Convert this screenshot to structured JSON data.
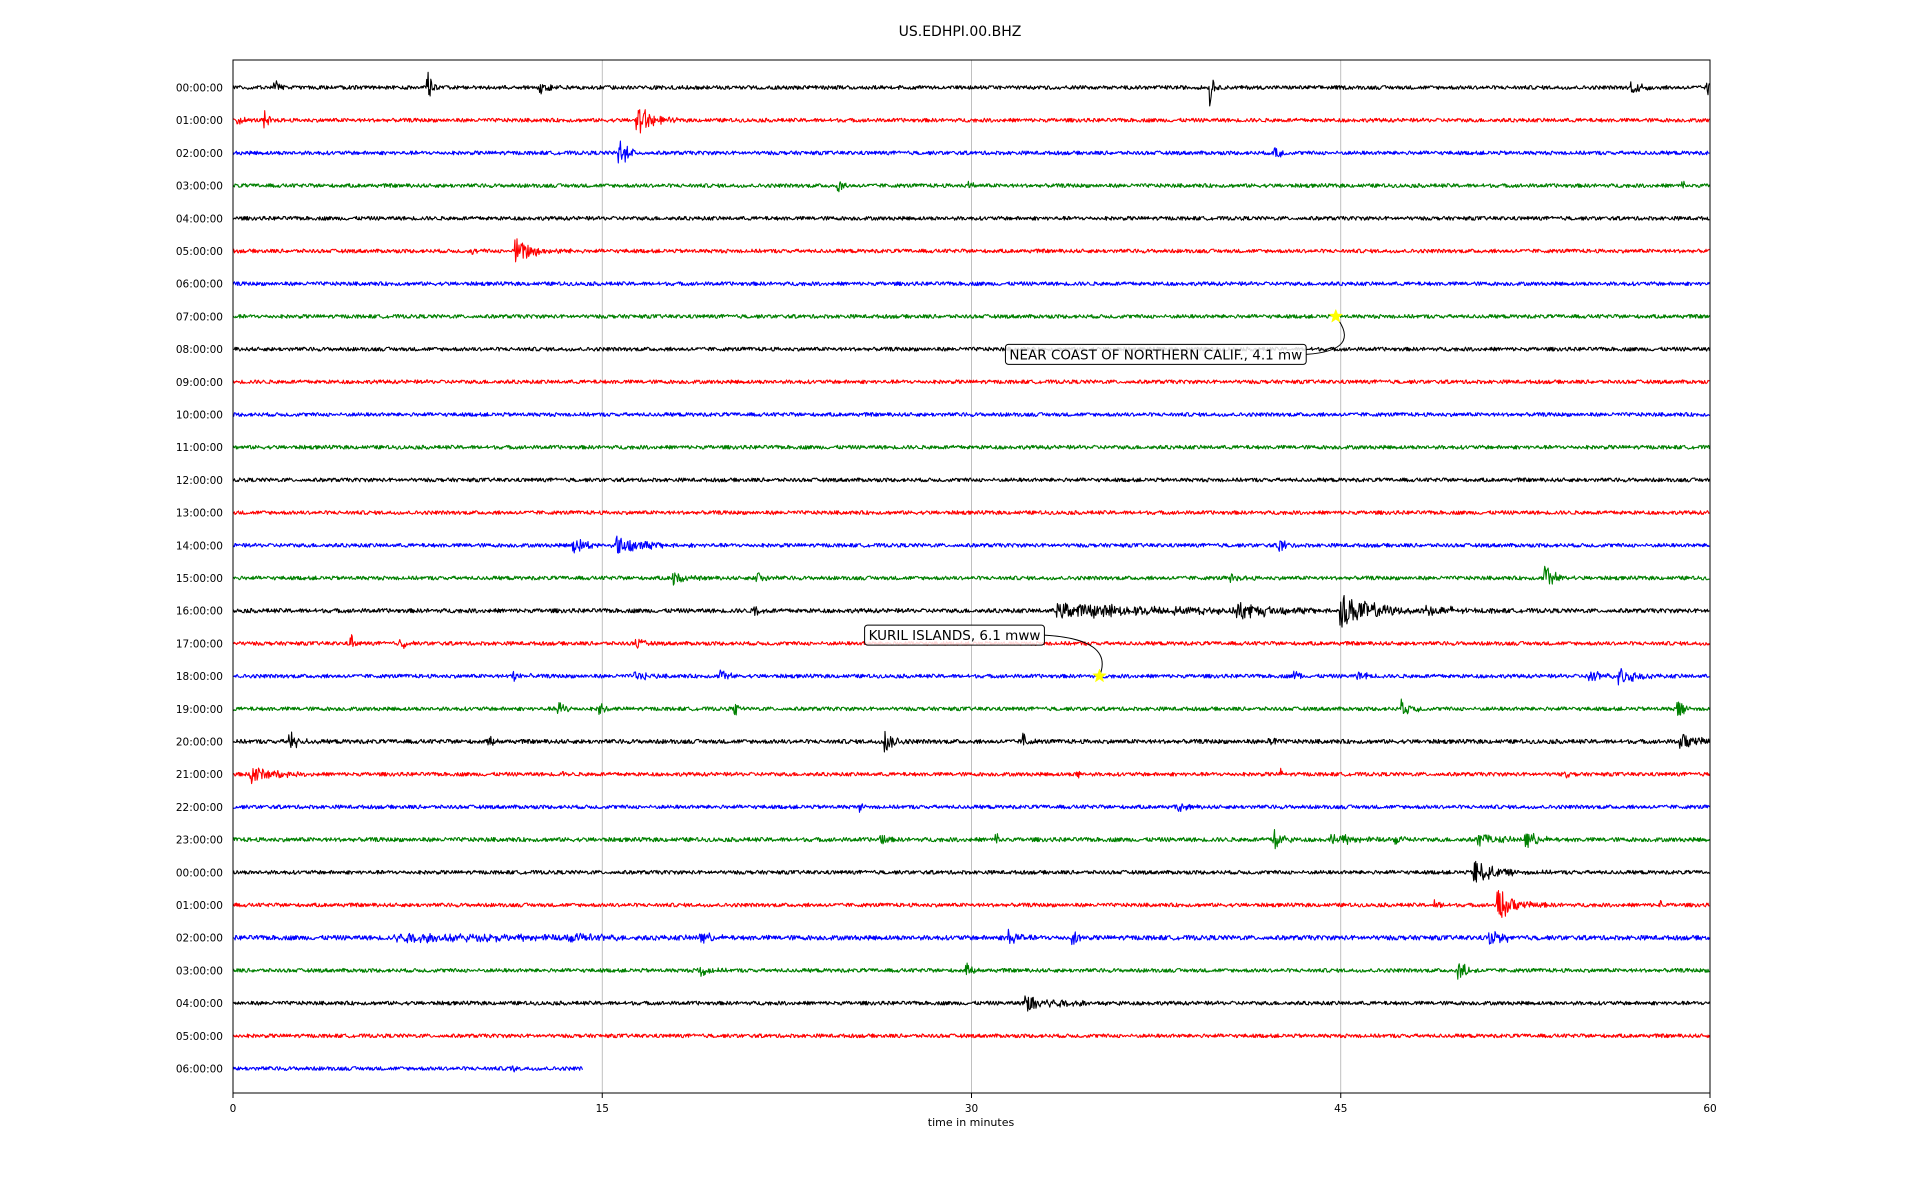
{
  "chart_data": {
    "type": "line",
    "title": "US.EDHPI.00.BHZ",
    "xlabel": "time in minutes",
    "ylabel": "",
    "xlim": [
      0,
      60
    ],
    "x_ticks": [
      0,
      15,
      30,
      45,
      60
    ],
    "grid": "vertical lines at 15, 30, 45",
    "trace_colors": [
      "#000000",
      "#ff0000",
      "#0000ff",
      "#008000"
    ],
    "row_labels": [
      "00:00:00",
      "01:00:00",
      "02:00:00",
      "03:00:00",
      "04:00:00",
      "05:00:00",
      "06:00:00",
      "07:00:00",
      "08:00:00",
      "09:00:00",
      "10:00:00",
      "11:00:00",
      "12:00:00",
      "13:00:00",
      "14:00:00",
      "15:00:00",
      "16:00:00",
      "17:00:00",
      "18:00:00",
      "19:00:00",
      "20:00:00",
      "21:00:00",
      "22:00:00",
      "23:00:00",
      "00:00:00",
      "01:00:00",
      "02:00:00",
      "03:00:00",
      "04:00:00",
      "05:00:00",
      "06:00:00"
    ],
    "rows": [
      {
        "end_minute": 60,
        "noise": 0.45,
        "events": [
          {
            "t": 1.7,
            "amp": 1.8,
            "dur": 0.4
          },
          {
            "t": 7.9,
            "amp": 4.5,
            "dur": 0.25
          },
          {
            "t": 12.5,
            "amp": 1.5,
            "dur": 0.6
          },
          {
            "t": 39.7,
            "amp": 5,
            "dur": 0.15
          },
          {
            "t": 56.8,
            "amp": 2.2,
            "dur": 0.7
          },
          {
            "t": 59.9,
            "amp": 2.5,
            "dur": 0.2
          }
        ]
      },
      {
        "end_minute": 60,
        "noise": 0.45,
        "events": [
          {
            "t": 0.2,
            "amp": 1.5,
            "dur": 0.3
          },
          {
            "t": 1.3,
            "amp": 2,
            "dur": 0.3
          },
          {
            "t": 16.4,
            "amp": 4.5,
            "dur": 0.9
          }
        ]
      },
      {
        "end_minute": 60,
        "noise": 0.45,
        "events": [
          {
            "t": 15.7,
            "amp": 4,
            "dur": 0.5
          },
          {
            "t": 42.3,
            "amp": 2,
            "dur": 0.4
          }
        ]
      },
      {
        "end_minute": 60,
        "noise": 0.45,
        "events": [
          {
            "t": 24.6,
            "amp": 2,
            "dur": 0.25
          },
          {
            "t": 29.9,
            "amp": 1.2,
            "dur": 0.3
          },
          {
            "t": 58.9,
            "amp": 1,
            "dur": 0.3
          }
        ]
      },
      {
        "end_minute": 60,
        "noise": 0.45,
        "events": []
      },
      {
        "end_minute": 60,
        "noise": 0.45,
        "events": [
          {
            "t": 9.7,
            "amp": 1.2,
            "dur": 0.3
          },
          {
            "t": 11.5,
            "amp": 3,
            "dur": 1.4
          }
        ]
      },
      {
        "end_minute": 60,
        "noise": 0.45,
        "events": []
      },
      {
        "end_minute": 60,
        "noise": 0.45,
        "events": []
      },
      {
        "end_minute": 60,
        "noise": 0.45,
        "events": []
      },
      {
        "end_minute": 60,
        "noise": 0.45,
        "events": []
      },
      {
        "end_minute": 60,
        "noise": 0.45,
        "events": []
      },
      {
        "end_minute": 60,
        "noise": 0.45,
        "events": []
      },
      {
        "end_minute": 60,
        "noise": 0.45,
        "events": []
      },
      {
        "end_minute": 60,
        "noise": 0.45,
        "events": []
      },
      {
        "end_minute": 60,
        "noise": 0.45,
        "events": [
          {
            "t": 13.8,
            "amp": 2,
            "dur": 1
          },
          {
            "t": 15.6,
            "amp": 2.5,
            "dur": 1.8
          },
          {
            "t": 42.5,
            "amp": 2,
            "dur": 0.4
          }
        ]
      },
      {
        "end_minute": 60,
        "noise": 0.45,
        "events": [
          {
            "t": 17.9,
            "amp": 1.8,
            "dur": 0.8
          },
          {
            "t": 21.3,
            "amp": 1.8,
            "dur": 0.6
          },
          {
            "t": 40.5,
            "amp": 1,
            "dur": 0.8
          },
          {
            "t": 53.3,
            "amp": 3,
            "dur": 0.8
          }
        ]
      },
      {
        "end_minute": 60,
        "noise": 0.5,
        "events": [
          {
            "t": 21.2,
            "amp": 1.5,
            "dur": 0.4
          },
          {
            "t": 33.5,
            "amp": 2,
            "dur": 8
          },
          {
            "t": 40.8,
            "amp": 2.2,
            "dur": 3
          },
          {
            "t": 45,
            "amp": 4,
            "dur": 2.5
          },
          {
            "t": 48.5,
            "amp": 1.6,
            "dur": 2
          }
        ]
      },
      {
        "end_minute": 60,
        "noise": 0.45,
        "events": [
          {
            "t": 4.8,
            "amp": 2,
            "dur": 0.2
          },
          {
            "t": 6.8,
            "amp": 1.5,
            "dur": 0.4
          },
          {
            "t": 16.4,
            "amp": 1.5,
            "dur": 0.4
          }
        ]
      },
      {
        "end_minute": 60,
        "noise": 0.45,
        "events": [
          {
            "t": 11.4,
            "amp": 2,
            "dur": 0.5
          },
          {
            "t": 16.3,
            "amp": 1.5,
            "dur": 0.8
          },
          {
            "t": 19.8,
            "amp": 1.5,
            "dur": 0.6
          },
          {
            "t": 43.1,
            "amp": 2,
            "dur": 0.3
          },
          {
            "t": 45.7,
            "amp": 1.3,
            "dur": 0.8
          },
          {
            "t": 55.1,
            "amp": 1.6,
            "dur": 0.8
          },
          {
            "t": 56.3,
            "amp": 2.2,
            "dur": 1.2
          }
        ]
      },
      {
        "end_minute": 60,
        "noise": 0.45,
        "events": [
          {
            "t": 13.2,
            "amp": 1.8,
            "dur": 0.5
          },
          {
            "t": 14.9,
            "amp": 2,
            "dur": 0.5
          },
          {
            "t": 20.4,
            "amp": 1.5,
            "dur": 0.4
          },
          {
            "t": 47.5,
            "amp": 2,
            "dur": 0.7
          },
          {
            "t": 58.7,
            "amp": 2,
            "dur": 0.5
          }
        ]
      },
      {
        "end_minute": 60,
        "noise": 0.5,
        "events": [
          {
            "t": 2.3,
            "amp": 2.5,
            "dur": 0.6
          },
          {
            "t": 10.4,
            "amp": 1.5,
            "dur": 0.3
          },
          {
            "t": 26.5,
            "amp": 3,
            "dur": 0.5
          },
          {
            "t": 32.1,
            "amp": 2.5,
            "dur": 0.3
          },
          {
            "t": 42.1,
            "amp": 1.5,
            "dur": 0.3
          },
          {
            "t": 58.8,
            "amp": 2.5,
            "dur": 1.2
          }
        ]
      },
      {
        "end_minute": 60,
        "noise": 0.45,
        "events": [
          {
            "t": 0.7,
            "amp": 2.5,
            "dur": 1.4
          },
          {
            "t": 13.4,
            "amp": 2,
            "dur": 0.2
          },
          {
            "t": 34.3,
            "amp": 1.2,
            "dur": 0.2
          },
          {
            "t": 42.6,
            "amp": 1.3,
            "dur": 0.2
          },
          {
            "t": 54.1,
            "amp": 1,
            "dur": 0.3
          }
        ]
      },
      {
        "end_minute": 60,
        "noise": 0.45,
        "events": [
          {
            "t": 25.5,
            "amp": 1,
            "dur": 0.3
          },
          {
            "t": 38.4,
            "amp": 1.2,
            "dur": 0.6
          }
        ]
      },
      {
        "end_minute": 60,
        "noise": 0.5,
        "events": [
          {
            "t": 26.3,
            "amp": 2,
            "dur": 0.3
          },
          {
            "t": 31,
            "amp": 1.5,
            "dur": 0.4
          },
          {
            "t": 42.3,
            "amp": 2.5,
            "dur": 0.6
          },
          {
            "t": 44.6,
            "amp": 1.8,
            "dur": 1.4
          },
          {
            "t": 47.2,
            "amp": 1.6,
            "dur": 0.6
          },
          {
            "t": 50.6,
            "amp": 2,
            "dur": 1.2
          },
          {
            "t": 52.5,
            "amp": 2,
            "dur": 1
          }
        ]
      },
      {
        "end_minute": 60,
        "noise": 0.45,
        "events": [
          {
            "t": 50.4,
            "amp": 3,
            "dur": 1.6
          }
        ]
      },
      {
        "end_minute": 60,
        "noise": 0.45,
        "events": [
          {
            "t": 48.8,
            "amp": 1,
            "dur": 0.4
          },
          {
            "t": 51.4,
            "amp": 4,
            "dur": 1.2
          },
          {
            "t": 58,
            "amp": 1,
            "dur": 0.2
          }
        ]
      },
      {
        "end_minute": 60,
        "noise": 0.55,
        "events": [
          {
            "t": 6.5,
            "amp": 1.2,
            "dur": 9
          },
          {
            "t": 13.6,
            "amp": 1.5,
            "dur": 2
          },
          {
            "t": 19,
            "amp": 1.3,
            "dur": 1
          },
          {
            "t": 31.5,
            "amp": 2.2,
            "dur": 0.6
          },
          {
            "t": 34.1,
            "amp": 2.5,
            "dur": 0.4
          },
          {
            "t": 51,
            "amp": 1.8,
            "dur": 1.2
          }
        ]
      },
      {
        "end_minute": 60,
        "noise": 0.45,
        "events": [
          {
            "t": 18.9,
            "amp": 2,
            "dur": 0.6
          },
          {
            "t": 29.8,
            "amp": 1.5,
            "dur": 0.4
          },
          {
            "t": 49.8,
            "amp": 2.5,
            "dur": 0.6
          }
        ]
      },
      {
        "end_minute": 60,
        "noise": 0.45,
        "events": [
          {
            "t": 32.2,
            "amp": 2.2,
            "dur": 2.5
          }
        ]
      },
      {
        "end_minute": 60,
        "noise": 0.45,
        "events": []
      },
      {
        "end_minute": 14.2,
        "noise": 0.45,
        "events": [
          {
            "t": 11.3,
            "amp": 0.8,
            "dur": 0.5
          }
        ]
      }
    ],
    "annotations": [
      {
        "text": "NEAR COAST OF NORTHERN CALIF., 4.1 mw",
        "row": 7,
        "t": 44.8,
        "marker": "star",
        "marker_color": "#ffff00"
      },
      {
        "text": "KURIL ISLANDS, 6.1 mww",
        "row": 18,
        "t": 35.2,
        "marker": "star",
        "marker_color": "#ffff00"
      }
    ]
  }
}
